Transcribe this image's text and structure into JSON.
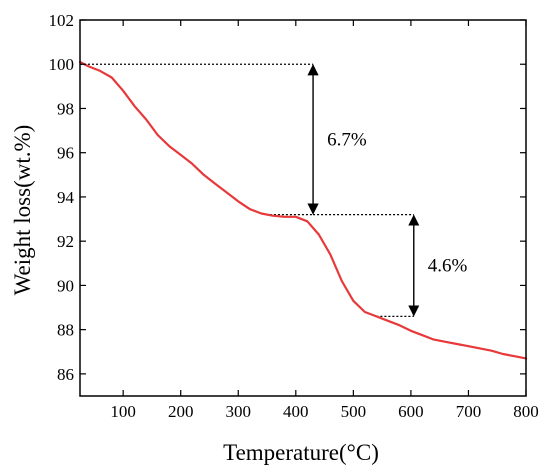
{
  "chart_data": {
    "type": "line",
    "xlabel": "Temperature(°C)",
    "ylabel": "Weight loss(wt.%)",
    "xlim": [
      25,
      800
    ],
    "ylim": [
      85,
      102
    ],
    "xticks": [
      100,
      200,
      300,
      400,
      500,
      600,
      700,
      800
    ],
    "yticks": [
      86,
      88,
      90,
      92,
      94,
      96,
      98,
      100,
      102
    ],
    "series": [
      {
        "color": "#e8393a",
        "x": [
          25,
          40,
          60,
          80,
          100,
          120,
          140,
          160,
          180,
          200,
          220,
          240,
          260,
          280,
          300,
          320,
          340,
          360,
          380,
          400,
          420,
          440,
          460,
          480,
          500,
          520,
          540,
          560,
          580,
          600,
          620,
          640,
          660,
          680,
          700,
          720,
          740,
          760,
          780,
          800
        ],
        "y": [
          100.1,
          99.9,
          99.7,
          99.4,
          98.8,
          98.1,
          97.5,
          96.8,
          96.3,
          95.9,
          95.5,
          95.0,
          94.6,
          94.2,
          93.8,
          93.45,
          93.25,
          93.15,
          93.1,
          93.1,
          92.9,
          92.3,
          91.4,
          90.2,
          89.3,
          88.8,
          88.6,
          88.4,
          88.2,
          87.95,
          87.75,
          87.55,
          87.45,
          87.35,
          87.25,
          87.15,
          87.05,
          86.9,
          86.8,
          86.7
        ]
      }
    ],
    "annotations": [
      {
        "text": "6.7%",
        "from_y": 100.0,
        "to_y": 93.2,
        "line_x_start": 25,
        "line_x_end": 430,
        "lower_line_x_start": 355,
        "lower_line_x_end": 430,
        "arrow_x": 430
      },
      {
        "text": "4.6%",
        "from_y": 93.2,
        "to_y": 88.6,
        "line_x_start": 430,
        "line_x_end": 605,
        "lower_line_x_start": 540,
        "lower_line_x_end": 605,
        "arrow_x": 605
      }
    ]
  }
}
